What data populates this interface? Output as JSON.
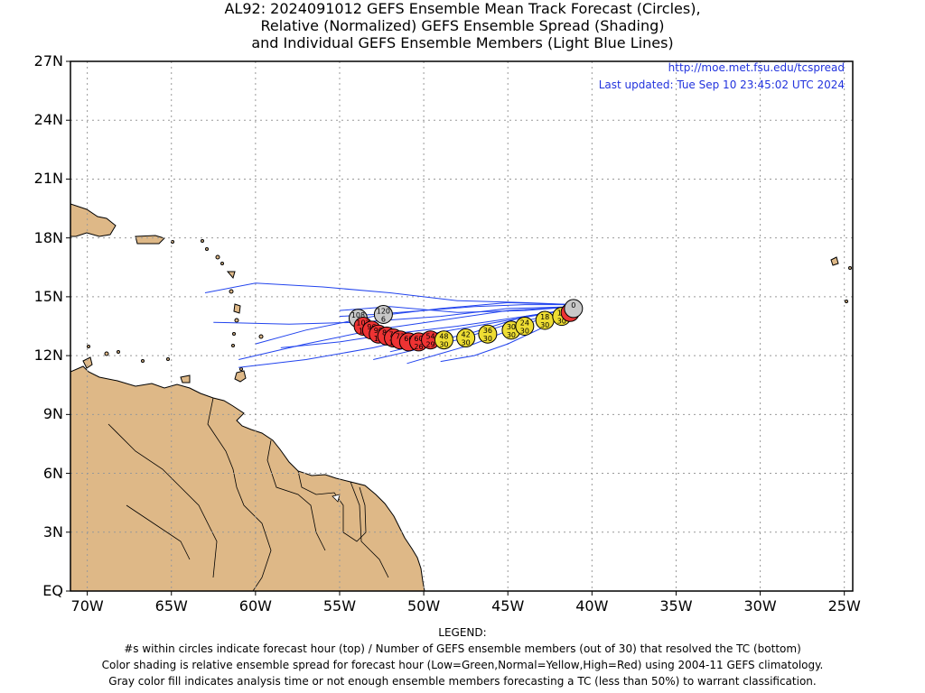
{
  "title": {
    "line1": "AL92: 2024091012 GEFS Ensemble Mean Track Forecast (Circles),",
    "line2": "Relative (Normalized) GEFS Ensemble Spread (Shading)",
    "line3": "and Individual GEFS Ensemble Members (Light Blue Lines)"
  },
  "source": {
    "url": "http://moe.met.fsu.edu/tcspread",
    "updated": "Last updated: Tue Sep 10 23:45:02 UTC 2024"
  },
  "axes": {
    "lat_ticks": [
      "27N",
      "24N",
      "21N",
      "18N",
      "15N",
      "12N",
      "9N",
      "6N",
      "3N",
      "EQ"
    ],
    "lon_ticks": [
      "70W",
      "65W",
      "60W",
      "55W",
      "50W",
      "45W",
      "40W",
      "35W",
      "30W",
      "25W"
    ]
  },
  "legend": [
    "LEGEND:",
    "#s within circles indicate forecast hour (top) / Number of GEFS ensemble members (out of 30) that resolved the TC (bottom)",
    "Color shading is relative ensemble spread for forecast hour (Low=Green,Normal=Yellow,High=Red) using 2004-11 GEFS climatology.",
    "Gray color fill indicates analysis time or not enough ensemble members forecasting a TC (less than 50%) to warrant classification."
  ],
  "colors": {
    "land": "#deb887",
    "track_lines": "#2244ee",
    "high_spread": "#ee3333",
    "normal_spread": "#eedd33",
    "not_classified": "#c8c8c8"
  },
  "map_extent": {
    "lon_west": -71,
    "lon_east": -24.5,
    "lat_south": 0,
    "lat_north": 27
  },
  "track_points": [
    {
      "hour": "0",
      "members": "",
      "lon": -41.1,
      "lat": 14.4,
      "spread": "gray"
    },
    {
      "hour": "6",
      "members": "",
      "lon": -41.3,
      "lat": 14.2,
      "spread": "high"
    },
    {
      "hour": "12",
      "members": "30",
      "lon": -41.8,
      "lat": 14.0,
      "spread": "normal"
    },
    {
      "hour": "18",
      "members": "30",
      "lon": -42.8,
      "lat": 13.8,
      "spread": "normal"
    },
    {
      "hour": "24",
      "members": "30",
      "lon": -44.0,
      "lat": 13.5,
      "spread": "normal"
    },
    {
      "hour": "30",
      "members": "30",
      "lon": -44.8,
      "lat": 13.3,
      "spread": "normal"
    },
    {
      "hour": "36",
      "members": "30",
      "lon": -46.2,
      "lat": 13.1,
      "spread": "normal"
    },
    {
      "hour": "42",
      "members": "30",
      "lon": -47.5,
      "lat": 12.9,
      "spread": "normal"
    },
    {
      "hour": "48",
      "members": "30",
      "lon": -48.8,
      "lat": 12.8,
      "spread": "normal"
    },
    {
      "hour": "54",
      "members": "29",
      "lon": -49.6,
      "lat": 12.8,
      "spread": "high"
    },
    {
      "hour": "60",
      "members": "26",
      "lon": -50.3,
      "lat": 12.7,
      "spread": "high"
    },
    {
      "hour": "66",
      "members": "",
      "lon": -50.9,
      "lat": 12.7,
      "spread": "high"
    },
    {
      "hour": "72",
      "members": "",
      "lon": -51.4,
      "lat": 12.8,
      "spread": "high"
    },
    {
      "hour": "78",
      "members": "18",
      "lon": -51.8,
      "lat": 12.9,
      "spread": "high"
    },
    {
      "hour": "84",
      "members": "",
      "lon": -52.2,
      "lat": 13.0,
      "spread": "high"
    },
    {
      "hour": "90",
      "members": "13",
      "lon": -52.7,
      "lat": 13.1,
      "spread": "high"
    },
    {
      "hour": "96",
      "members": "",
      "lon": -53.1,
      "lat": 13.3,
      "spread": "high"
    },
    {
      "hour": "102",
      "members": "11",
      "lon": -53.6,
      "lat": 13.5,
      "spread": "high"
    },
    {
      "hour": "108",
      "members": "8",
      "lon": -53.9,
      "lat": 13.9,
      "spread": "gray"
    },
    {
      "hour": "120",
      "members": "6",
      "lon": -52.4,
      "lat": 14.1,
      "spread": "gray"
    }
  ],
  "member_tracks": [
    [
      [
        -41,
        14.6
      ],
      [
        -44,
        14.6
      ],
      [
        -47,
        14.5
      ],
      [
        -50,
        14.3
      ],
      [
        -53,
        14.1
      ],
      [
        -55,
        14.0
      ]
    ],
    [
      [
        -41,
        14.5
      ],
      [
        -45,
        14.3
      ],
      [
        -49,
        13.8
      ],
      [
        -53,
        13.3
      ],
      [
        -57,
        12.6
      ],
      [
        -61,
        11.8
      ]
    ],
    [
      [
        -41,
        14.4
      ],
      [
        -44,
        14.0
      ],
      [
        -48,
        13.5
      ],
      [
        -52,
        13.1
      ],
      [
        -55,
        12.7
      ],
      [
        -58.5,
        12.4
      ]
    ],
    [
      [
        -41,
        14.4
      ],
      [
        -45,
        13.8
      ],
      [
        -49,
        13.2
      ],
      [
        -53,
        12.4
      ],
      [
        -57,
        11.8
      ],
      [
        -61,
        11.4
      ]
    ],
    [
      [
        -41,
        14.3
      ],
      [
        -45,
        13.6
      ],
      [
        -48,
        12.8
      ],
      [
        -51,
        12.2
      ],
      [
        -53,
        11.8
      ]
    ],
    [
      [
        -41,
        14.4
      ],
      [
        -44,
        13.6
      ],
      [
        -47,
        12.6
      ],
      [
        -49,
        12.1
      ],
      [
        -51,
        11.6
      ]
    ],
    [
      [
        -41,
        14.6
      ],
      [
        -44,
        14.7
      ],
      [
        -48,
        14.8
      ],
      [
        -52,
        15.2
      ],
      [
        -56,
        15.5
      ],
      [
        -60,
        15.7
      ],
      [
        -63,
        15.2
      ]
    ],
    [
      [
        -41,
        14.5
      ],
      [
        -45,
        14.4
      ],
      [
        -49,
        14.0
      ],
      [
        -54,
        13.7
      ],
      [
        -58,
        13.6
      ],
      [
        -62.5,
        13.7
      ]
    ],
    [
      [
        -41,
        14.5
      ],
      [
        -44,
        14.3
      ],
      [
        -48,
        14.2
      ],
      [
        -52,
        14.5
      ],
      [
        -55,
        14.3
      ]
    ],
    [
      [
        -41,
        14.4
      ],
      [
        -43,
        13.4
      ],
      [
        -45,
        12.6
      ],
      [
        -47,
        12.0
      ],
      [
        -49,
        11.7
      ]
    ],
    [
      [
        -41,
        14.6
      ],
      [
        -45,
        14.7
      ],
      [
        -49,
        14.4
      ],
      [
        -53,
        14.0
      ],
      [
        -57,
        13.3
      ],
      [
        -60,
        12.6
      ]
    ],
    [
      [
        -41,
        14.4
      ],
      [
        -44,
        14.0
      ],
      [
        -47,
        13.2
      ],
      [
        -50,
        12.6
      ],
      [
        -52,
        12.2
      ]
    ]
  ],
  "map_labels": {
    "map_aria": "Map"
  }
}
